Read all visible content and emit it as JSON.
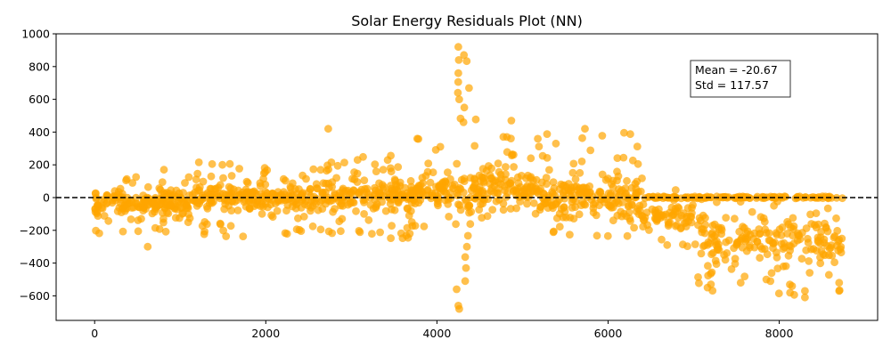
{
  "chart_data": {
    "type": "scatter",
    "title": "Solar Energy Residuals Plot (NN)",
    "xlabel": "",
    "ylabel": "",
    "xlim": [
      -450,
      9150
    ],
    "ylim": [
      -750,
      1000
    ],
    "x_ticks": [
      0,
      2000,
      4000,
      6000,
      8000
    ],
    "y_ticks": [
      -600,
      -400,
      -200,
      0,
      200,
      400,
      600,
      800,
      1000
    ],
    "grid": false,
    "zero_line": {
      "y": 0,
      "style": "dashed",
      "color": "#000000"
    },
    "point_color": "#FFA500",
    "point_count_approx": 8760,
    "stats_box": {
      "lines": [
        "Mean = -20.67",
        "Std = 117.57"
      ],
      "placement": "top-right"
    },
    "segments": [
      {
        "x_range": [
          0,
          1200
        ],
        "center": -30,
        "spread": [
          -250,
          140
        ]
      },
      {
        "x_range": [
          1200,
          2600
        ],
        "center": 0,
        "spread": [
          -240,
          220
        ]
      },
      {
        "x_range": [
          2600,
          3700
        ],
        "center": 10,
        "spread": [
          -250,
          260
        ]
      },
      {
        "x_range": [
          3700,
          4200
        ],
        "center": 30,
        "spread": [
          -200,
          360
        ]
      },
      {
        "x_range": [
          4200,
          4400
        ],
        "center": 40,
        "spread": [
          -680,
          920
        ]
      },
      {
        "x_range": [
          4400,
          5200
        ],
        "center": 60,
        "spread": [
          -150,
          480
        ]
      },
      {
        "x_range": [
          5200,
          6400
        ],
        "center": 0,
        "spread": [
          -250,
          430
        ]
      },
      {
        "x_range": [
          6400,
          7000
        ],
        "center": -120,
        "spread": [
          -300,
          60
        ]
      },
      {
        "x_range": [
          7000,
          8760
        ],
        "center": -250,
        "spread": [
          -610,
          10
        ]
      }
    ],
    "notable_points": [
      {
        "x": 4250,
        "y": 920
      },
      {
        "x": 4255,
        "y": 840
      },
      {
        "x": 4250,
        "y": 760
      },
      {
        "x": 4245,
        "y": 640
      },
      {
        "x": 4260,
        "y": 600
      },
      {
        "x": 4320,
        "y": 550
      },
      {
        "x": 4310,
        "y": 460
      },
      {
        "x": 2730,
        "y": 420
      },
      {
        "x": 5730,
        "y": 420
      },
      {
        "x": 4870,
        "y": 470
      },
      {
        "x": 3770,
        "y": 360
      },
      {
        "x": 4230,
        "y": -560
      },
      {
        "x": 4250,
        "y": -660
      },
      {
        "x": 4260,
        "y": -680
      },
      {
        "x": 4330,
        "y": -510
      },
      {
        "x": 4340,
        "y": -430
      },
      {
        "x": 4350,
        "y": -300
      },
      {
        "x": 8300,
        "y": -610
      },
      {
        "x": 8300,
        "y": -570
      },
      {
        "x": 8700,
        "y": -570
      },
      {
        "x": 8700,
        "y": -520
      },
      {
        "x": 8150,
        "y": -540
      },
      {
        "x": 7550,
        "y": -520
      },
      {
        "x": 7850,
        "y": -500
      },
      {
        "x": 810,
        "y": 170
      },
      {
        "x": 620,
        "y": -300
      }
    ]
  }
}
